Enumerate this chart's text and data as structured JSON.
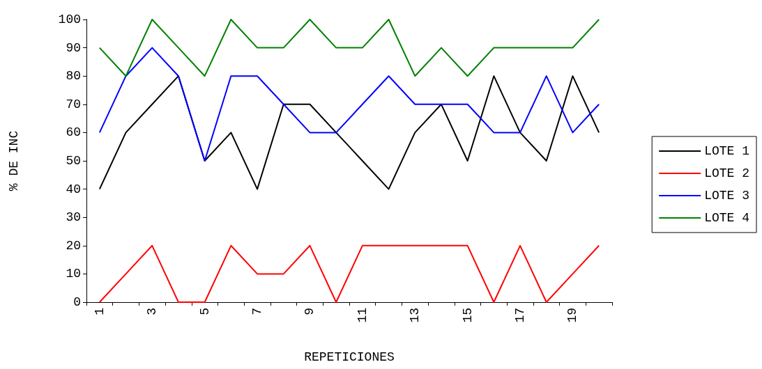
{
  "chart_data": {
    "type": "line",
    "xlabel": "REPETICIONES",
    "ylabel": "% DE INC",
    "categories": [
      "1",
      null,
      "3",
      null,
      "5",
      null,
      "7",
      null,
      "9",
      null,
      "11",
      null,
      "13",
      null,
      "15",
      null,
      "17",
      null,
      "19",
      null
    ],
    "series": [
      {
        "name": "LOTE 1",
        "color": "#000000",
        "values": [
          40,
          60,
          70,
          80,
          50,
          60,
          40,
          70,
          70,
          60,
          50,
          40,
          60,
          70,
          50,
          80,
          60,
          50,
          80,
          60
        ]
      },
      {
        "name": "LOTE 2",
        "color": "#ff0000",
        "values": [
          0,
          10,
          20,
          0,
          0,
          20,
          10,
          10,
          20,
          0,
          20,
          20,
          20,
          20,
          20,
          0,
          20,
          0,
          10,
          20
        ]
      },
      {
        "name": "LOTE 3",
        "color": "#0000ff",
        "values": [
          60,
          80,
          90,
          80,
          50,
          80,
          80,
          70,
          60,
          60,
          70,
          80,
          70,
          70,
          70,
          60,
          60,
          80,
          60,
          70
        ]
      },
      {
        "name": "LOTE 4",
        "color": "#008000",
        "values": [
          90,
          80,
          100,
          90,
          80,
          100,
          90,
          90,
          100,
          90,
          90,
          100,
          80,
          90,
          80,
          90,
          90,
          90,
          90,
          100
        ]
      }
    ],
    "ylim": [
      0,
      100
    ],
    "yticks": [
      0,
      10,
      20,
      30,
      40,
      50,
      60,
      70,
      80,
      90,
      100
    ],
    "grid": false,
    "legend": "right",
    "marker": "none",
    "line_style": "solid"
  }
}
